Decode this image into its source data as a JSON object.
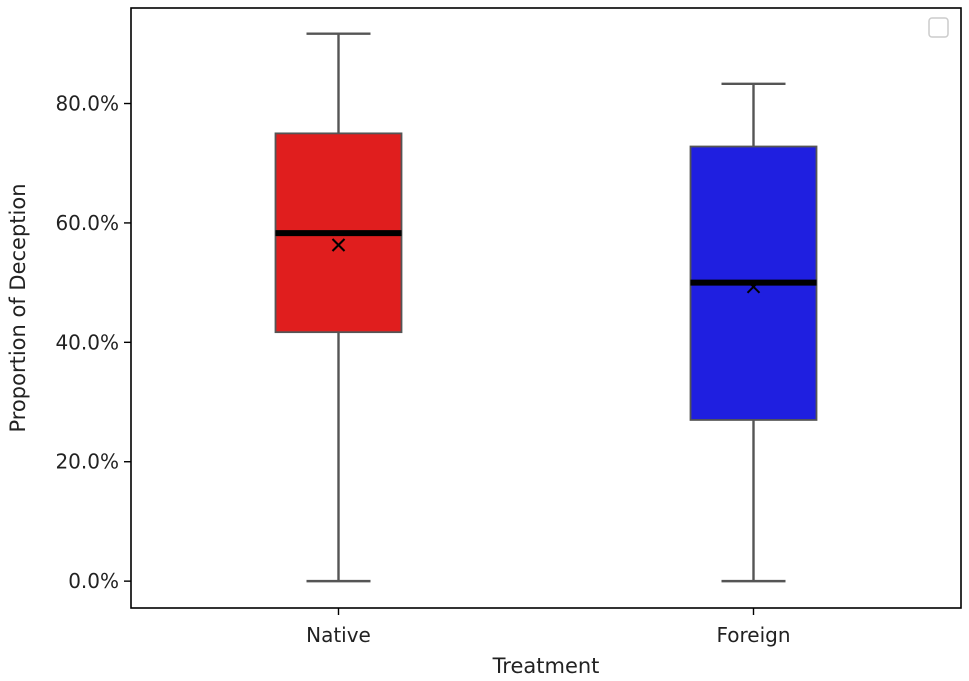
{
  "chart_data": {
    "type": "box",
    "title": "",
    "xlabel": "Treatment",
    "ylabel": "Proportion of Deception",
    "ylim": [
      -0.045,
      0.96
    ],
    "y_ticks": [
      0.0,
      0.2,
      0.4,
      0.6,
      0.8
    ],
    "y_tick_labels": [
      "0.0%",
      "20.0%",
      "40.0%",
      "60.0%",
      "80.0%"
    ],
    "y_format": "percent",
    "grid": false,
    "legend": "top-right (empty)",
    "categories": [
      "Native",
      "Foreign"
    ],
    "boxes": [
      {
        "label": "Native",
        "color": "#e01e1e",
        "whisker_low": 0.0,
        "q1": 0.417,
        "median": 0.583,
        "q3": 0.75,
        "whisker_high": 0.917,
        "mean": 0.563
      },
      {
        "label": "Foreign",
        "color": "#1f1fe0",
        "whisker_low": 0.0,
        "q1": 0.27,
        "median": 0.5,
        "q3": 0.728,
        "whisker_high": 0.833,
        "mean": 0.493
      }
    ],
    "mean_marker": "x",
    "colors": {
      "whisker": "#555555",
      "median": "#000000",
      "frame": "#000000"
    }
  }
}
